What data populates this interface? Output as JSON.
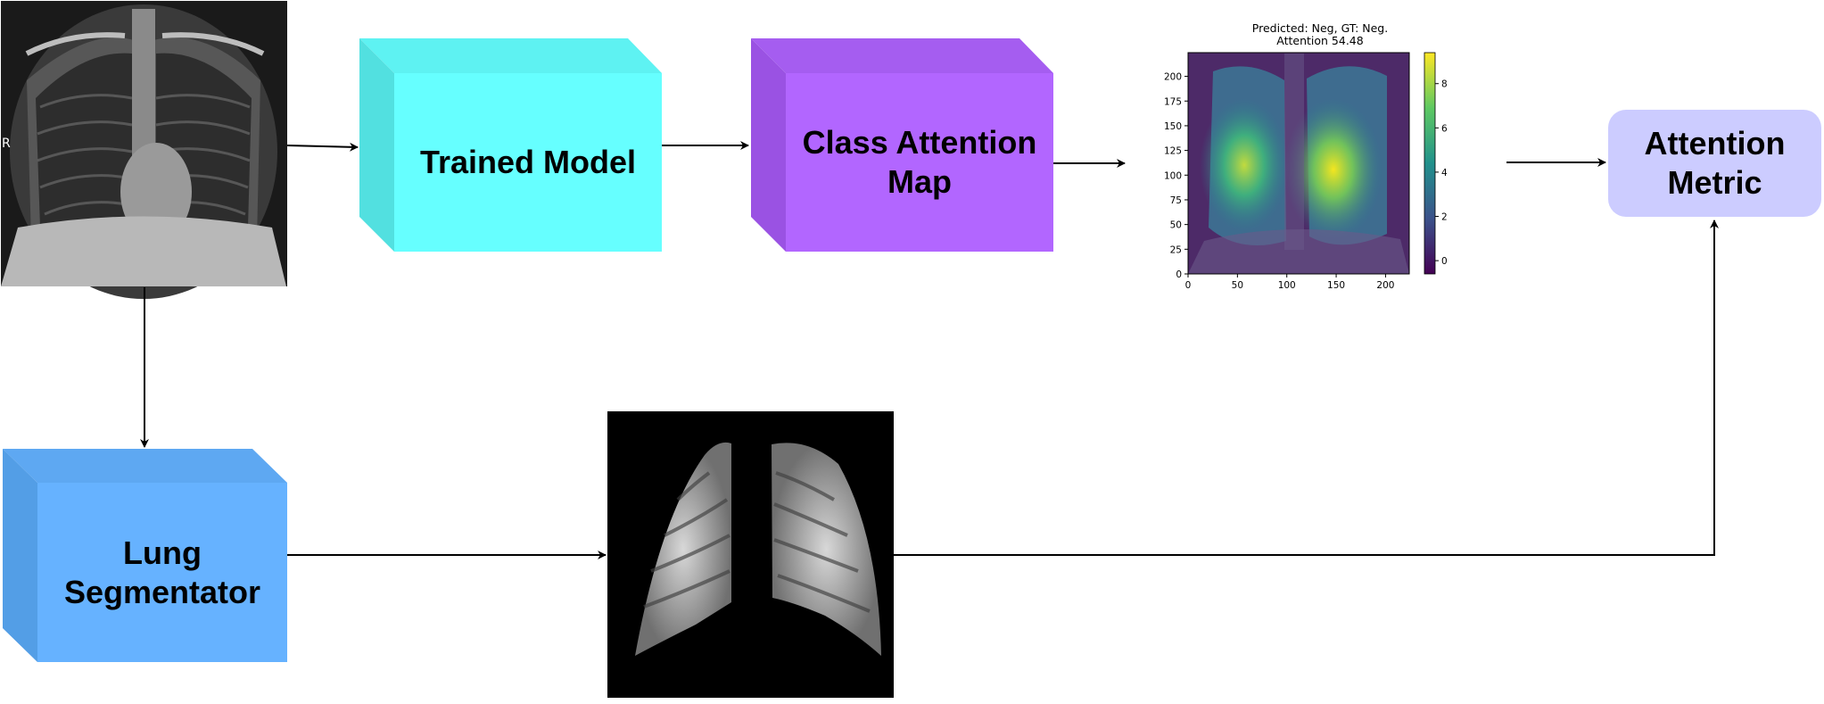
{
  "nodes": {
    "trained_model": "Trained Model",
    "class_attention_map": "Class Attention\nMap",
    "attention_metric": "Attention\nMetric",
    "lung_segmentator": "Lung\nSegmentator"
  },
  "xray": {
    "side_marker": "R"
  },
  "attention_plot": {
    "title": "Predicted: Neg, GT: Neg.\nAttention 54.48",
    "x_ticks": [
      "0",
      "50",
      "100",
      "150",
      "200"
    ],
    "y_ticks": [
      "0",
      "25",
      "50",
      "75",
      "100",
      "125",
      "150",
      "175",
      "200"
    ],
    "colorbar_ticks": [
      "0",
      "2",
      "4",
      "6",
      "8"
    ]
  },
  "colors": {
    "trained_model": "#66ffff",
    "class_attention_map": "#b266ff",
    "lung_segmentator": "#66b2ff",
    "attention_metric": "#ccccff"
  }
}
